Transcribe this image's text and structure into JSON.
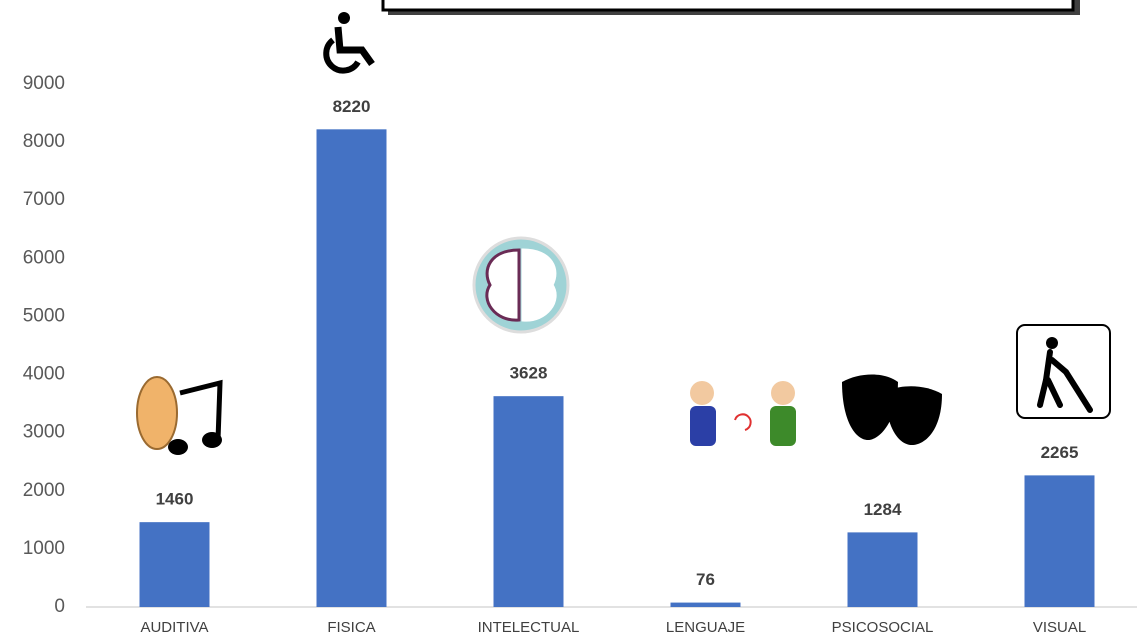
{
  "chart_data": {
    "type": "bar",
    "categories": [
      "AUDITIVA",
      "FISICA",
      "INTELECTUAL",
      "LENGUAJE",
      "PSICOSOCIAL",
      "VISUAL"
    ],
    "values": [
      1460,
      8220,
      3628,
      76,
      1284,
      2265
    ],
    "color": "#4472c4",
    "ylim": [
      0,
      9000
    ],
    "yticks": [
      0,
      1000,
      2000,
      3000,
      4000,
      5000,
      6000,
      7000,
      8000,
      9000
    ],
    "grid": false
  }
}
